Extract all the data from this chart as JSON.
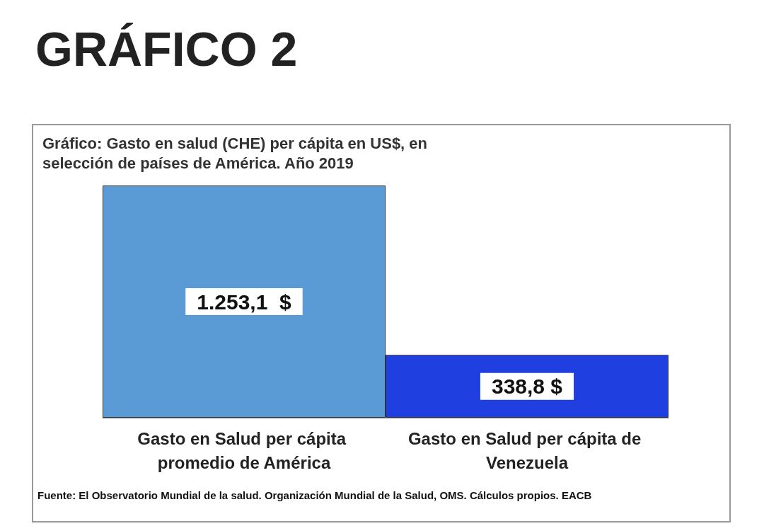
{
  "chart_data": {
    "type": "bar",
    "title": "GRÁFICO 2",
    "subtitle": "Gráfico: Gasto en salud (CHE) per cápita en US$, en selección de países de América. Año 2019",
    "categories": [
      "Gasto en Salud per cápita promedio de América",
      "Gasto en Salud per cápita de Venezuela"
    ],
    "values": [
      1253.1,
      338.8
    ],
    "colors": [
      "#5b9bd5",
      "#1f3fe0"
    ],
    "value_labels": [
      "1.253,1  $",
      "338,8 $"
    ],
    "annotations": [
      "Fuente: El Observatorio Mundial de la salud. Organización Mundial de la Salud, OMS. Cálculos propios. EACB"
    ]
  }
}
